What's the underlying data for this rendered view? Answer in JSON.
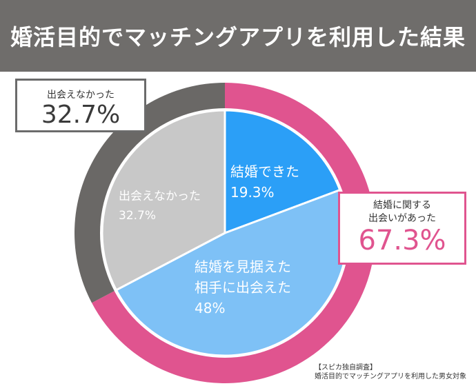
{
  "header": {
    "title": "婚活目的でマッチングアプリを利用した結果"
  },
  "chart_data": {
    "type": "pie",
    "title": "婚活目的でマッチングアプリを利用した結果",
    "slices": [
      {
        "label": [
          "結婚できた"
        ],
        "value": 19.3,
        "value_label": "19.3%",
        "color": "#2b9ff7",
        "text_color": "#ffffff"
      },
      {
        "label": [
          "結婚を見据えた",
          "相手に出会えた"
        ],
        "value": 48,
        "value_label": "48%",
        "color": "#7ec1f6",
        "text_color": "#ffffff"
      },
      {
        "label": [
          "出会えなかった"
        ],
        "value": 32.7,
        "value_label": "32.7%",
        "color": "#c8c8c8",
        "text_color": "#ffffff"
      }
    ],
    "outer_ring": [
      {
        "value": 67.3,
        "color": "#e0548f"
      },
      {
        "value": 32.7,
        "color": "#6a6866"
      }
    ]
  },
  "callouts": {
    "not_met": {
      "label": "出会えなかった",
      "value": "32.7%"
    },
    "marriage_related": {
      "label_line1": "結婚に関する",
      "label_line2": "出会いがあった",
      "value": "67.3%"
    }
  },
  "source": {
    "line1": "【スピカ独自調査】",
    "line2": "婚活目的でマッチングアプリを利用した男女対象"
  }
}
